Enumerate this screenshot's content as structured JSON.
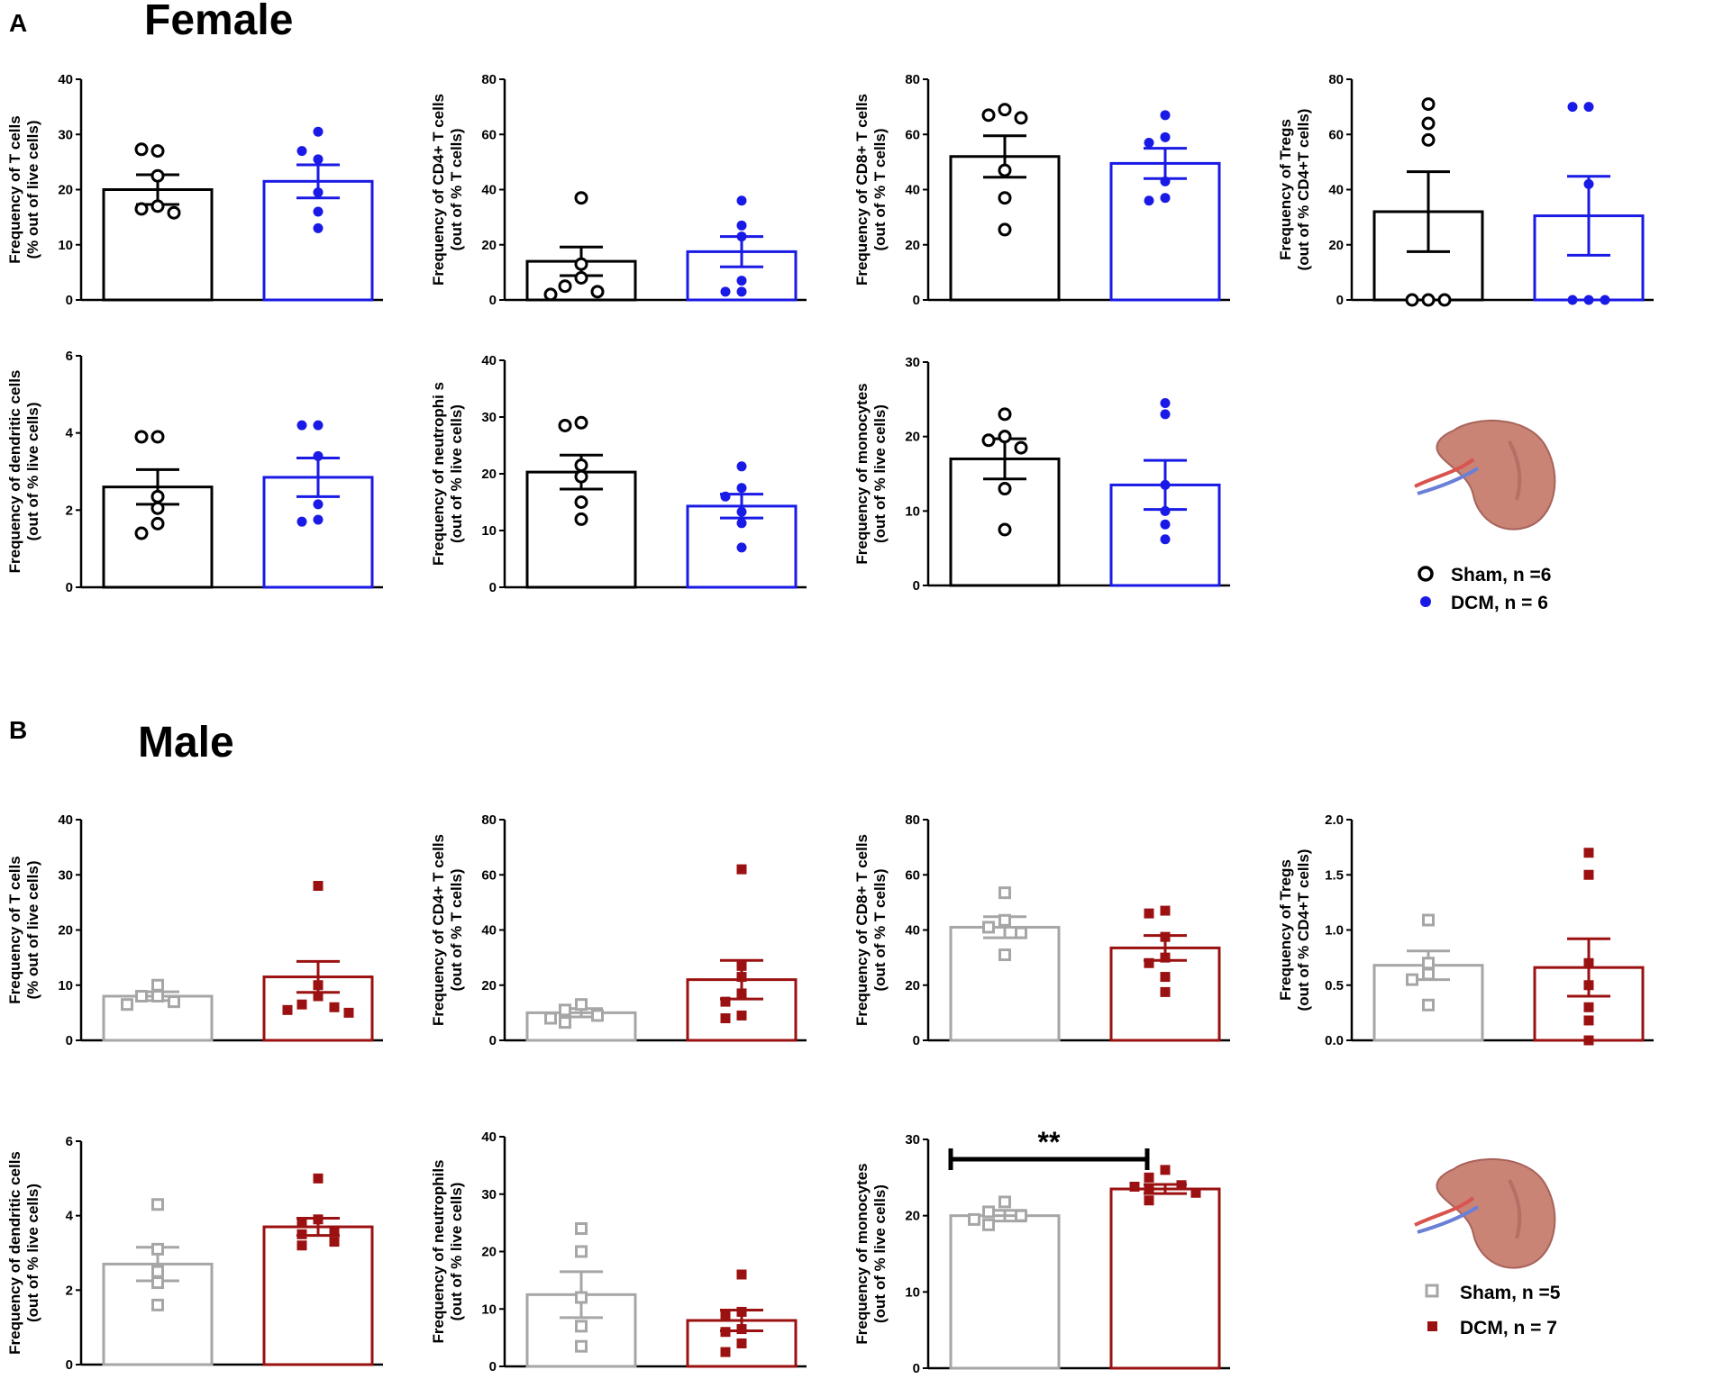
{
  "panels": [
    {
      "letter": "A",
      "title": "Female"
    },
    {
      "letter": "B",
      "title": "Male"
    }
  ],
  "colors": {
    "female_sham": "#000000",
    "female_dcm": "#1a1ae6",
    "male_sham": "#a6a6a6",
    "male_dcm": "#9b1010",
    "spleen": "#c98476",
    "spleen_dark": "#a8635a",
    "vessel_red": "#d9534f",
    "vessel_blue": "#6a7fd6"
  },
  "legends": [
    {
      "items": [
        {
          "label": "Sham, n =6",
          "marker": "circle-open"
        },
        {
          "label": "DCM, n = 6",
          "marker": "circle-filled"
        }
      ],
      "icon": "spleen-icon"
    },
    {
      "items": [
        {
          "label": "Sham, n =5",
          "marker": "square-open"
        },
        {
          "label": "DCM, n = 7",
          "marker": "square-filled"
        }
      ],
      "icon": "spleen-icon"
    }
  ],
  "chart_data": [
    {
      "type": "bar",
      "panel": "A",
      "group": "Female",
      "ylabel_lines": [
        "Frequency of T cells",
        "(% out of live cells)"
      ],
      "ylim": [
        0,
        40
      ],
      "yticks": [
        "0",
        "10",
        "20",
        "30",
        "40"
      ],
      "series": [
        {
          "name": "Sham",
          "mean": 20,
          "sem": 2.7,
          "points": [
            17,
            16.5,
            15.8,
            22.5,
            27,
            27.3
          ]
        },
        {
          "name": "DCM",
          "mean": 21.5,
          "sem": 3,
          "points": [
            13,
            16,
            19.5,
            25.5,
            27,
            30.5
          ]
        }
      ]
    },
    {
      "type": "bar",
      "panel": "A",
      "group": "Female",
      "ylabel_lines": [
        "Frequency of CD4+ T cells",
        "(out of % T cells)"
      ],
      "ylim": [
        0,
        80
      ],
      "yticks": [
        "0",
        "20",
        "40",
        "60",
        "80"
      ],
      "series": [
        {
          "name": "Sham",
          "mean": 14,
          "sem": 5.2,
          "points": [
            37,
            13,
            8,
            5,
            3,
            2
          ]
        },
        {
          "name": "DCM",
          "mean": 17.5,
          "sem": 5.5,
          "points": [
            36,
            27,
            23,
            7,
            3,
            3
          ]
        }
      ]
    },
    {
      "type": "bar",
      "panel": "A",
      "group": "Female",
      "ylabel_lines": [
        "Frequency of CD8+ T cells",
        "(out of % T cells)"
      ],
      "ylim": [
        0,
        80
      ],
      "yticks": [
        "0",
        "20",
        "40",
        "60",
        "80"
      ],
      "series": [
        {
          "name": "Sham",
          "mean": 52,
          "sem": 7.5,
          "points": [
            69,
            67,
            66,
            47,
            37,
            25.5
          ]
        },
        {
          "name": "DCM",
          "mean": 49.5,
          "sem": 5.5,
          "points": [
            67,
            59,
            57,
            43,
            37,
            36
          ]
        }
      ]
    },
    {
      "type": "bar",
      "panel": "A",
      "group": "Female",
      "ylabel_lines": [
        "Frequency of Tregs",
        "(out of % CD4+T cells)"
      ],
      "ylim": [
        0,
        80
      ],
      "yticks": [
        "0",
        "20",
        "40",
        "60",
        "80"
      ],
      "series": [
        {
          "name": "Sham",
          "mean": 32,
          "sem": 14.5,
          "points": [
            71,
            64,
            58,
            0,
            0,
            0
          ]
        },
        {
          "name": "DCM",
          "mean": 30.5,
          "sem": 14.3,
          "points": [
            70,
            70,
            42,
            0,
            0,
            0
          ]
        }
      ]
    },
    {
      "type": "bar",
      "panel": "A",
      "group": "Female",
      "ylabel_lines": [
        "Frequency of dendritic cells",
        "(out of % live cells)"
      ],
      "ylim": [
        0,
        6
      ],
      "yticks": [
        "0",
        "2",
        "4",
        "6"
      ],
      "series": [
        {
          "name": "Sham",
          "mean": 2.6,
          "sem": 0.45,
          "points": [
            3.9,
            3.9,
            2.35,
            2.05,
            1.65,
            1.4
          ]
        },
        {
          "name": "DCM",
          "mean": 2.85,
          "sem": 0.5,
          "points": [
            4.2,
            4.2,
            3.4,
            2.15,
            1.75,
            1.7
          ]
        }
      ]
    },
    {
      "type": "bar",
      "panel": "A",
      "group": "Female",
      "ylabel_lines": [
        "Frequency of neutrophi s",
        "(out of % live cells)"
      ],
      "ylim": [
        0,
        40
      ],
      "yticks": [
        "0",
        "10",
        "20",
        "30",
        "40"
      ],
      "series": [
        {
          "name": "Sham",
          "mean": 20.3,
          "sem": 3,
          "points": [
            29,
            28.5,
            21.5,
            19.5,
            15,
            12
          ]
        },
        {
          "name": "DCM",
          "mean": 14.3,
          "sem": 2.1,
          "points": [
            21.3,
            17.5,
            16,
            13.3,
            11.3,
            7
          ]
        }
      ]
    },
    {
      "type": "bar",
      "panel": "A",
      "group": "Female",
      "ylabel_lines": [
        "Frequency of monocytes",
        "(out of % live cells)"
      ],
      "ylim": [
        0,
        30
      ],
      "yticks": [
        "0",
        "10",
        "20",
        "30"
      ],
      "series": [
        {
          "name": "Sham",
          "mean": 17,
          "sem": 2.7,
          "points": [
            23,
            20,
            19.5,
            18.5,
            13,
            7.5
          ]
        },
        {
          "name": "DCM",
          "mean": 13.5,
          "sem": 3.3,
          "points": [
            24.5,
            23,
            13.5,
            10,
            8.2,
            6.2
          ]
        }
      ]
    },
    {
      "type": "bar",
      "panel": "B",
      "group": "Male",
      "ylabel_lines": [
        "Frequency of T cells",
        "(% out of live cells)"
      ],
      "ylim": [
        0,
        40
      ],
      "yticks": [
        "0",
        "10",
        "20",
        "30",
        "40"
      ],
      "series": [
        {
          "name": "Sham",
          "mean": 8,
          "sem": 0.8,
          "points": [
            10,
            8,
            8,
            7,
            6.5
          ]
        },
        {
          "name": "DCM",
          "mean": 11.5,
          "sem": 2.8,
          "points": [
            28,
            10,
            8,
            6.5,
            6,
            5.5,
            5
          ]
        }
      ]
    },
    {
      "type": "bar",
      "panel": "B",
      "group": "Male",
      "ylabel_lines": [
        "Frequency of CD4+ T cells",
        "(out of % T cells)"
      ],
      "ylim": [
        0,
        80
      ],
      "yticks": [
        "0",
        "20",
        "40",
        "60",
        "80"
      ],
      "series": [
        {
          "name": "Sham",
          "mean": 10,
          "sem": 1.5,
          "points": [
            13,
            11,
            9,
            8,
            6.5
          ]
        },
        {
          "name": "DCM",
          "mean": 22,
          "sem": 7,
          "points": [
            62,
            27,
            23,
            17,
            14,
            9,
            8
          ]
        }
      ]
    },
    {
      "type": "bar",
      "panel": "B",
      "group": "Male",
      "ylabel_lines": [
        "Frequency of CD8+ T cells",
        "(out of % T cells)"
      ],
      "ylim": [
        0,
        80
      ],
      "yticks": [
        "0",
        "20",
        "40",
        "60",
        "80"
      ],
      "series": [
        {
          "name": "Sham",
          "mean": 41,
          "sem": 3.8,
          "points": [
            53.5,
            43.5,
            41,
            39,
            31
          ]
        },
        {
          "name": "DCM",
          "mean": 33.5,
          "sem": 4.5,
          "points": [
            47,
            46,
            37.5,
            30,
            28,
            23,
            17.5
          ]
        }
      ]
    },
    {
      "type": "bar",
      "panel": "B",
      "group": "Male",
      "ylabel_lines": [
        "Frequency of Tregs",
        "(out of % CD4+T cells)"
      ],
      "ylim": [
        0,
        2
      ],
      "yticks": [
        "0.0",
        "0.5",
        "1.0",
        "1.5",
        "2.0"
      ],
      "series": [
        {
          "name": "Sham",
          "mean": 0.68,
          "sem": 0.13,
          "points": [
            1.09,
            0.7,
            0.6,
            0.55,
            0.32
          ]
        },
        {
          "name": "DCM",
          "mean": 0.66,
          "sem": 0.26,
          "points": [
            1.7,
            1.5,
            0.7,
            0.5,
            0.3,
            0.18,
            0
          ]
        }
      ]
    },
    {
      "type": "bar",
      "panel": "B",
      "group": "Male",
      "ylabel_lines": [
        "Frequency of dendritic cells",
        "(out of % live cells)"
      ],
      "ylim": [
        0,
        6
      ],
      "yticks": [
        "0",
        "2",
        "4",
        "6"
      ],
      "series": [
        {
          "name": "Sham",
          "mean": 2.7,
          "sem": 0.45,
          "points": [
            4.3,
            3.1,
            2.5,
            2.2,
            1.6
          ]
        },
        {
          "name": "DCM",
          "mean": 3.7,
          "sem": 0.23,
          "points": [
            5,
            3.9,
            3.8,
            3.6,
            3.5,
            3.3,
            3.2
          ]
        }
      ]
    },
    {
      "type": "bar",
      "panel": "B",
      "group": "Male",
      "ylabel_lines": [
        "Frequency of neutrophils",
        "(out of % live cells)"
      ],
      "ylim": [
        0,
        40
      ],
      "yticks": [
        "0",
        "10",
        "20",
        "30",
        "40"
      ],
      "series": [
        {
          "name": "Sham",
          "mean": 12.5,
          "sem": 4,
          "points": [
            24,
            20,
            12,
            7,
            3.5
          ]
        },
        {
          "name": "DCM",
          "mean": 8,
          "sem": 1.8,
          "points": [
            16,
            9.5,
            9,
            6.5,
            6,
            4,
            2.5
          ]
        }
      ]
    },
    {
      "type": "bar",
      "panel": "B",
      "group": "Male",
      "ylabel_lines": [
        "Frequency of monocytes",
        "(out of % live cells)"
      ],
      "ylim": [
        0,
        30
      ],
      "yticks": [
        "0",
        "10",
        "20",
        "30"
      ],
      "series": [
        {
          "name": "Sham",
          "mean": 20,
          "sem": 0.7,
          "points": [
            21.8,
            20.5,
            20,
            19.5,
            18.8
          ]
        },
        {
          "name": "DCM",
          "mean": 23.5,
          "sem": 0.6,
          "points": [
            26,
            25,
            24,
            23.8,
            23.5,
            23,
            22
          ]
        }
      ],
      "significance": "**"
    }
  ]
}
